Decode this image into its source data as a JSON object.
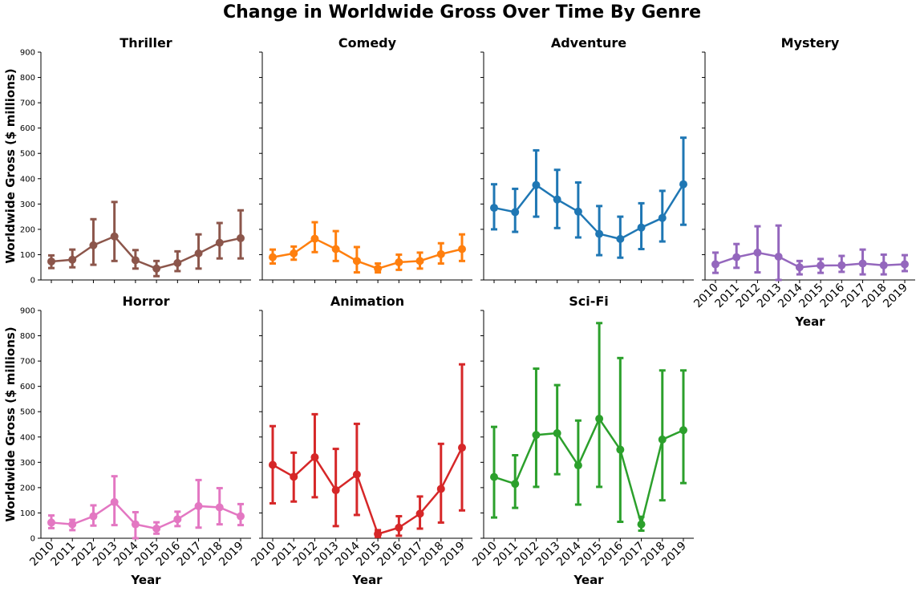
{
  "suptitle": "Change in Worldwide Gross Over Time By Genre",
  "chart_data": [
    {
      "type": "line",
      "title": "Thriller",
      "color": "#8c564b",
      "xlabel": "",
      "ylabel": "Worldwide Gross ($ millions)",
      "x": [
        "2010",
        "2011",
        "2012",
        "2013",
        "2014",
        "2015",
        "2016",
        "2017",
        "2018",
        "2019"
      ],
      "values": [
        73,
        80,
        137,
        172,
        78,
        45,
        67,
        105,
        147,
        165
      ],
      "err_low": [
        47,
        50,
        60,
        75,
        45,
        15,
        35,
        45,
        85,
        85
      ],
      "err_high": [
        97,
        120,
        240,
        308,
        118,
        75,
        113,
        180,
        225,
        275
      ],
      "ylim": [
        0,
        900
      ],
      "yticks": [
        0,
        100,
        200,
        300,
        400,
        500,
        600,
        700,
        800,
        900
      ],
      "show_xticklabels": false,
      "show_yticklabels": true
    },
    {
      "type": "line",
      "title": "Comedy",
      "color": "#ff7f0e",
      "xlabel": "",
      "ylabel": "",
      "x": [
        "2010",
        "2011",
        "2012",
        "2013",
        "2014",
        "2015",
        "2016",
        "2017",
        "2018",
        "2019"
      ],
      "values": [
        90,
        105,
        163,
        122,
        75,
        45,
        70,
        75,
        102,
        122
      ],
      "err_low": [
        65,
        80,
        110,
        75,
        30,
        30,
        40,
        45,
        65,
        75
      ],
      "err_high": [
        120,
        132,
        228,
        193,
        130,
        65,
        100,
        108,
        145,
        180
      ],
      "ylim": [
        0,
        900
      ],
      "yticks": [
        0,
        100,
        200,
        300,
        400,
        500,
        600,
        700,
        800,
        900
      ],
      "show_xticklabels": false,
      "show_yticklabels": false
    },
    {
      "type": "line",
      "title": "Adventure",
      "color": "#1f77b4",
      "xlabel": "",
      "ylabel": "",
      "x": [
        "2010",
        "2011",
        "2012",
        "2013",
        "2014",
        "2015",
        "2016",
        "2017",
        "2018",
        "2019"
      ],
      "values": [
        285,
        268,
        375,
        318,
        270,
        182,
        162,
        207,
        245,
        378
      ],
      "err_low": [
        200,
        190,
        250,
        205,
        168,
        98,
        88,
        122,
        152,
        218
      ],
      "err_high": [
        378,
        360,
        512,
        435,
        385,
        292,
        250,
        303,
        352,
        562
      ],
      "ylim": [
        0,
        900
      ],
      "yticks": [
        0,
        100,
        200,
        300,
        400,
        500,
        600,
        700,
        800,
        900
      ],
      "show_xticklabels": false,
      "show_yticklabels": false
    },
    {
      "type": "line",
      "title": "Mystery",
      "color": "#9467bd",
      "xlabel": "Year",
      "ylabel": "",
      "x": [
        "2010",
        "2011",
        "2012",
        "2013",
        "2014",
        "2015",
        "2016",
        "2017",
        "2018",
        "2019"
      ],
      "values": [
        62,
        90,
        108,
        92,
        50,
        57,
        58,
        65,
        58,
        62
      ],
      "err_low": [
        28,
        48,
        30,
        0,
        22,
        28,
        32,
        22,
        22,
        35
      ],
      "err_high": [
        108,
        142,
        212,
        215,
        75,
        83,
        95,
        120,
        100,
        98
      ],
      "ylim": [
        0,
        900
      ],
      "yticks": [
        0,
        100,
        200,
        300,
        400,
        500,
        600,
        700,
        800,
        900
      ],
      "show_xticklabels": true,
      "show_yticklabels": false
    },
    {
      "type": "line",
      "title": "Horror",
      "color": "#e377c2",
      "xlabel": "Year",
      "ylabel": "Worldwide Gross ($ millions)",
      "x": [
        "2010",
        "2011",
        "2012",
        "2013",
        "2014",
        "2015",
        "2016",
        "2017",
        "2018",
        "2019"
      ],
      "values": [
        62,
        55,
        87,
        143,
        55,
        38,
        75,
        127,
        122,
        87
      ],
      "err_low": [
        40,
        32,
        50,
        52,
        0,
        18,
        48,
        42,
        55,
        52
      ],
      "err_high": [
        90,
        73,
        130,
        245,
        103,
        63,
        105,
        230,
        198,
        135
      ],
      "ylim": [
        0,
        900
      ],
      "yticks": [
        0,
        100,
        200,
        300,
        400,
        500,
        600,
        700,
        800,
        900
      ],
      "show_xticklabels": true,
      "show_yticklabels": true
    },
    {
      "type": "line",
      "title": "Animation",
      "color": "#d62728",
      "xlabel": "Year",
      "ylabel": "",
      "x": [
        "2010",
        "2011",
        "2012",
        "2013",
        "2014",
        "2015",
        "2016",
        "2017",
        "2018",
        "2019"
      ],
      "values": [
        290,
        243,
        320,
        190,
        252,
        17,
        42,
        97,
        195,
        358
      ],
      "err_low": [
        138,
        145,
        162,
        48,
        92,
        5,
        10,
        38,
        62,
        110
      ],
      "err_high": [
        443,
        338,
        490,
        353,
        452,
        32,
        87,
        165,
        373,
        687
      ],
      "ylim": [
        0,
        900
      ],
      "yticks": [
        0,
        100,
        200,
        300,
        400,
        500,
        600,
        700,
        800,
        900
      ],
      "show_xticklabels": true,
      "show_yticklabels": false
    },
    {
      "type": "line",
      "title": "Sci-Fi",
      "color": "#2ca02c",
      "xlabel": "Year",
      "ylabel": "",
      "x": [
        "2010",
        "2011",
        "2012",
        "2013",
        "2014",
        "2015",
        "2016",
        "2017",
        "2018",
        "2019"
      ],
      "values": [
        242,
        215,
        408,
        415,
        288,
        472,
        350,
        55,
        390,
        427
      ],
      "err_low": [
        82,
        120,
        203,
        253,
        133,
        203,
        65,
        30,
        150,
        218
      ],
      "err_high": [
        440,
        328,
        670,
        605,
        465,
        850,
        712,
        85,
        663,
        663
      ],
      "ylim": [
        0,
        900
      ],
      "yticks": [
        0,
        100,
        200,
        300,
        400,
        500,
        600,
        700,
        800,
        900
      ],
      "show_xticklabels": true,
      "show_yticklabels": false
    }
  ]
}
